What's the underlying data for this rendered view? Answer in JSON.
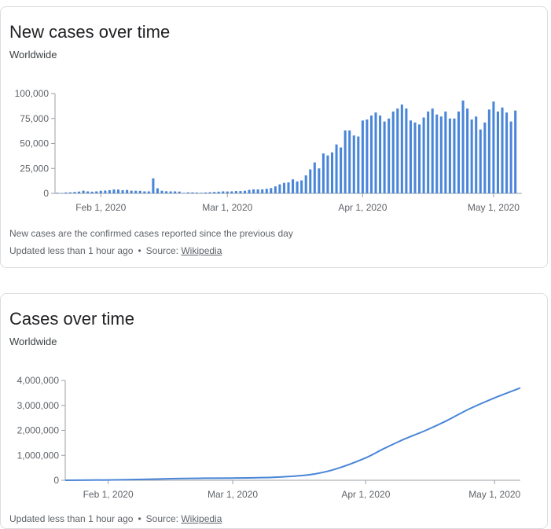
{
  "cards": [
    {
      "title": "New cases over time",
      "subtitle": "Worldwide",
      "note": "New cases are the confirmed cases reported since the previous day",
      "updated": "Updated less than 1 hour ago",
      "source_label": "Source:",
      "source_link": "Wikipedia"
    },
    {
      "title": "Cases over time",
      "subtitle": "Worldwide",
      "updated": "Updated less than 1 hour ago",
      "source_label": "Source:",
      "source_link": "Wikipedia"
    }
  ],
  "colors": {
    "series": "#4a86d8",
    "axis": "#5f6368",
    "grid": "#e0e0e0"
  },
  "chart_data": [
    {
      "type": "bar",
      "title": "New cases over time",
      "subtitle": "Worldwide",
      "x_range": [
        "2020-01-22",
        "2020-05-07"
      ],
      "ylim": [
        0,
        100000
      ],
      "y_ticks": [
        0,
        25000,
        50000,
        75000,
        100000
      ],
      "y_tick_labels": [
        "0",
        "25,000",
        "50,000",
        "75,000",
        "100,000"
      ],
      "x_ticks": [
        "2020-02-01",
        "2020-03-01",
        "2020-04-01",
        "2020-05-01"
      ],
      "x_tick_labels": [
        "Feb 1, 2020",
        "Mar 1, 2020",
        "Apr 1, 2020",
        "May 1, 2020"
      ],
      "grid": false,
      "x": [
        "2020-01-22",
        "2020-01-23",
        "2020-01-24",
        "2020-01-25",
        "2020-01-26",
        "2020-01-27",
        "2020-01-28",
        "2020-01-29",
        "2020-01-30",
        "2020-01-31",
        "2020-02-01",
        "2020-02-02",
        "2020-02-03",
        "2020-02-04",
        "2020-02-05",
        "2020-02-06",
        "2020-02-07",
        "2020-02-08",
        "2020-02-09",
        "2020-02-10",
        "2020-02-11",
        "2020-02-12",
        "2020-02-13",
        "2020-02-14",
        "2020-02-15",
        "2020-02-16",
        "2020-02-17",
        "2020-02-18",
        "2020-02-19",
        "2020-02-20",
        "2020-02-21",
        "2020-02-22",
        "2020-02-23",
        "2020-02-24",
        "2020-02-25",
        "2020-02-26",
        "2020-02-27",
        "2020-02-28",
        "2020-02-29",
        "2020-03-01",
        "2020-03-02",
        "2020-03-03",
        "2020-03-04",
        "2020-03-05",
        "2020-03-06",
        "2020-03-07",
        "2020-03-08",
        "2020-03-09",
        "2020-03-10",
        "2020-03-11",
        "2020-03-12",
        "2020-03-13",
        "2020-03-14",
        "2020-03-15",
        "2020-03-16",
        "2020-03-17",
        "2020-03-18",
        "2020-03-19",
        "2020-03-20",
        "2020-03-21",
        "2020-03-22",
        "2020-03-23",
        "2020-03-24",
        "2020-03-25",
        "2020-03-26",
        "2020-03-27",
        "2020-03-28",
        "2020-03-29",
        "2020-03-30",
        "2020-03-31",
        "2020-04-01",
        "2020-04-02",
        "2020-04-03",
        "2020-04-04",
        "2020-04-05",
        "2020-04-06",
        "2020-04-07",
        "2020-04-08",
        "2020-04-09",
        "2020-04-10",
        "2020-04-11",
        "2020-04-12",
        "2020-04-13",
        "2020-04-14",
        "2020-04-15",
        "2020-04-16",
        "2020-04-17",
        "2020-04-18",
        "2020-04-19",
        "2020-04-20",
        "2020-04-21",
        "2020-04-22",
        "2020-04-23",
        "2020-04-24",
        "2020-04-25",
        "2020-04-26",
        "2020-04-27",
        "2020-04-28",
        "2020-04-29",
        "2020-04-30",
        "2020-05-01",
        "2020-05-02",
        "2020-05-03",
        "2020-05-04",
        "2020-05-05",
        "2020-05-06",
        "2020-05-07"
      ],
      "values": [
        600,
        300,
        900,
        1000,
        1400,
        1800,
        2700,
        2000,
        1700,
        2000,
        2600,
        2800,
        3200,
        3900,
        3800,
        3200,
        3400,
        2700,
        2600,
        2500,
        2000,
        2000,
        15000,
        5100,
        2600,
        2100,
        2000,
        2000,
        1800,
        500,
        1000,
        1000,
        800,
        600,
        900,
        1100,
        1400,
        1700,
        2000,
        1900,
        2000,
        2300,
        2300,
        2600,
        3500,
        4000,
        4000,
        4000,
        4600,
        5300,
        7000,
        9000,
        10500,
        11000,
        14000,
        12000,
        13000,
        18000,
        24000,
        31000,
        25000,
        40000,
        38000,
        41000,
        49000,
        46000,
        63000,
        63000,
        58000,
        57000,
        73000,
        74000,
        78000,
        81000,
        78000,
        72000,
        75000,
        82000,
        85000,
        89000,
        85000,
        73000,
        71000,
        69000,
        76000,
        82000,
        85000,
        79000,
        77000,
        82000,
        75000,
        75000,
        82000,
        93000,
        85000,
        74000,
        77000,
        64000,
        71000,
        84000,
        92000,
        82000,
        86000,
        81000,
        72000,
        83000,
        0
      ]
    },
    {
      "type": "line",
      "title": "Cases over time",
      "subtitle": "Worldwide",
      "x_range": [
        "2020-01-22",
        "2020-05-07"
      ],
      "ylim": [
        0,
        4000000
      ],
      "y_ticks": [
        0,
        1000000,
        2000000,
        3000000,
        4000000
      ],
      "y_tick_labels": [
        "0",
        "1,000,000",
        "2,000,000",
        "3,000,000",
        "4,000,000"
      ],
      "x_ticks": [
        "2020-02-01",
        "2020-03-01",
        "2020-04-01",
        "2020-05-01"
      ],
      "x_tick_labels": [
        "Feb 1, 2020",
        "Mar 1, 2020",
        "Apr 1, 2020",
        "May 1, 2020"
      ],
      "grid": false,
      "x": [
        "2020-01-22",
        "2020-02-01",
        "2020-02-10",
        "2020-02-20",
        "2020-03-01",
        "2020-03-10",
        "2020-03-15",
        "2020-03-20",
        "2020-03-25",
        "2020-04-01",
        "2020-04-05",
        "2020-04-10",
        "2020-04-15",
        "2020-04-20",
        "2020-04-25",
        "2020-05-01",
        "2020-05-07"
      ],
      "values": [
        550,
        12000,
        40000,
        76000,
        88000,
        114000,
        160000,
        250000,
        450000,
        900000,
        1250000,
        1650000,
        2000000,
        2400000,
        2850000,
        3300000,
        3700000
      ]
    }
  ]
}
